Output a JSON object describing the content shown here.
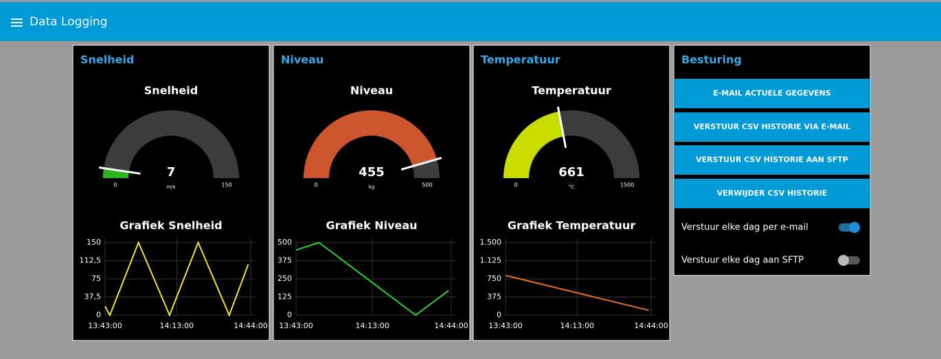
{
  "header": {
    "title": "Data Logging"
  },
  "panels": [
    {
      "title": "Snelheid",
      "gauge": {
        "title": "Snelheid",
        "value": 7,
        "unit": "m/s",
        "min": 0,
        "max": 150,
        "color": "#2db51d"
      },
      "chart": {
        "type": "line",
        "title": "Grafiek Snelheid",
        "color": "#f2e43a",
        "x": [
          "13:43:00",
          "13:45:00",
          "13:57:00",
          "14:10:00",
          "14:22:00",
          "14:35:00",
          "14:43:00"
        ],
        "values": [
          18,
          0,
          150,
          0,
          150,
          0,
          105
        ],
        "xlim": [
          "13:43:00",
          "14:44:00"
        ],
        "xticks": [
          "13:43:00",
          "14:13:00",
          "14:44:00"
        ],
        "ylim": [
          0,
          150
        ],
        "yticks": [
          0,
          {
            "value": 37.5,
            "label": "37,5"
          },
          75,
          {
            "value": 112.5,
            "label": "112,5"
          },
          150
        ],
        "grid": true
      }
    },
    {
      "title": "Niveau",
      "gauge": {
        "title": "Niveau",
        "value": 455,
        "unit": "kg",
        "min": 0,
        "max": 500,
        "color": "#cc552d"
      },
      "chart": {
        "type": "line",
        "title": "Grafiek Niveau",
        "color": "#22d822",
        "x": [
          "13:43:00",
          "13:52:00",
          "14:30:00",
          "14:43:00"
        ],
        "values": [
          448,
          500,
          0,
          170
        ],
        "xlim": [
          "13:43:00",
          "14:44:00"
        ],
        "xticks": [
          "13:43:00",
          "14:13:00",
          "14:44:00"
        ],
        "ylim": [
          0,
          500
        ],
        "yticks": [
          0,
          125,
          250,
          375,
          500
        ],
        "grid": true
      }
    },
    {
      "title": "Temperatuur",
      "gauge": {
        "title": "Temperatuur",
        "value": 661,
        "unit": "°C",
        "min": 0,
        "max": 1500,
        "color": "#c8dc00"
      },
      "chart": {
        "type": "line",
        "title": "Grafiek Temperatuur",
        "color": "#e8701e",
        "x": [
          "13:43:00",
          "14:43:00"
        ],
        "values": [
          821,
          100
        ],
        "xlim": [
          "13:43:00",
          "14:44:00"
        ],
        "xticks": [
          "13:43:00",
          "14:13:00",
          "14:44:00"
        ],
        "ylim": [
          0,
          1500
        ],
        "yticks": [
          0,
          375,
          750,
          {
            "value": 1125,
            "label": "1.125"
          },
          {
            "value": 1500,
            "label": "1.500"
          }
        ],
        "grid": true
      }
    }
  ],
  "controls": {
    "title": "Besturing",
    "buttons": [
      "E-MAIL ACTUELE GEGEVENS",
      "VERSTUUR CSV HISTORIE VIA E-MAIL",
      "VERSTUUR CSV HISTORIE AAN SFTP",
      "VERWIJDER CSV HISTORIE"
    ],
    "switches": [
      {
        "label": "Verstuur elke dag per e-mail",
        "on": true
      },
      {
        "label": "Verstuur elke dag aan SFTP",
        "on": false
      }
    ]
  }
}
